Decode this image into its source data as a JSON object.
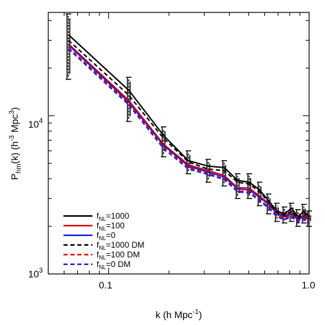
{
  "chart_data": {
    "type": "line",
    "title": "",
    "xlabel": {
      "main": "k (h Mpc",
      "sup": "-1",
      "tail": ")"
    },
    "ylabel": {
      "a": "P",
      "sub": "hm",
      "b": "(k) (h",
      "sup1": "-3",
      "c": " Mpc",
      "sup2": "3",
      "d": ")"
    },
    "xscale": "log",
    "yscale": "log",
    "xlim": [
      0.05,
      1.0
    ],
    "ylim": [
      1000,
      45000
    ],
    "xticks": [
      {
        "value": 0.1,
        "label": "0.1"
      },
      {
        "value": 1.0,
        "label": "1.0"
      }
    ],
    "yticks": [
      {
        "value": 1000,
        "base": "10",
        "exp": "3"
      },
      {
        "value": 10000,
        "base": "10",
        "exp": "4"
      }
    ],
    "grid": false,
    "legend_position": "bottom-left",
    "x": [
      0.063,
      0.126,
      0.188,
      0.25,
      0.314,
      0.377,
      0.44,
      0.503,
      0.566,
      0.628,
      0.691,
      0.754,
      0.817,
      0.88,
      0.942,
      1.0
    ],
    "series": [
      {
        "name_main": "f",
        "name_sub": "NL",
        "name_rest": "=1000",
        "color": "#000000",
        "dash": "solid",
        "values": [
          32500,
          14500,
          7500,
          5200,
          4800,
          4700,
          3900,
          3800,
          3400,
          2900,
          2500,
          2400,
          2600,
          2300,
          2500,
          2300
        ]
      },
      {
        "name_main": "f",
        "name_sub": "NL",
        "name_rest": "=100",
        "color": "#e00000",
        "dash": "solid",
        "values": [
          28500,
          12500,
          6600,
          4900,
          4500,
          4200,
          3500,
          3500,
          3100,
          2800,
          2450,
          2350,
          2450,
          2250,
          2350,
          2250
        ]
      },
      {
        "name_main": "f",
        "name_sub": "NL",
        "name_rest": "=0",
        "color": "#1c1cd8",
        "dash": "solid",
        "values": [
          28000,
          12200,
          6500,
          4800,
          4400,
          4100,
          3450,
          3400,
          3050,
          2750,
          2400,
          2300,
          2400,
          2200,
          2300,
          2200
        ]
      },
      {
        "name_main": "f",
        "name_sub": "NL",
        "name_rest": "=1000 DM",
        "color": "#000000",
        "dash": "dashed",
        "values": [
          30000,
          13500,
          7200,
          5100,
          4600,
          4500,
          3800,
          3700,
          3300,
          2850,
          2450,
          2350,
          2500,
          2250,
          2400,
          2250
        ]
      },
      {
        "name_main": "f",
        "name_sub": "NL",
        "name_rest": "=100 DM",
        "color": "#e00000",
        "dash": "dashed",
        "values": [
          27000,
          12000,
          6400,
          4700,
          4300,
          4000,
          3350,
          3300,
          2950,
          2650,
          2350,
          2250,
          2350,
          2150,
          2250,
          2150
        ]
      },
      {
        "name_main": "f",
        "name_sub": "NL",
        "name_rest": "=0 DM",
        "color": "#1c1cd8",
        "dash": "dashed",
        "values": [
          26500,
          11700,
          6200,
          4600,
          4250,
          3950,
          3300,
          3250,
          2900,
          2600,
          2300,
          2200,
          2300,
          2100,
          2200,
          2100
        ]
      }
    ],
    "errorbars": [
      {
        "x": 0.063,
        "lo": 17000,
        "hi": 44000
      },
      {
        "x": 0.126,
        "lo": 9200,
        "hi": 17500
      },
      {
        "x": 0.188,
        "lo": 5500,
        "hi": 8500
      },
      {
        "x": 0.25,
        "lo": 4300,
        "hi": 6000
      },
      {
        "x": 0.314,
        "lo": 3800,
        "hi": 5300
      },
      {
        "x": 0.377,
        "lo": 3600,
        "hi": 5200
      },
      {
        "x": 0.44,
        "lo": 3000,
        "hi": 4300
      },
      {
        "x": 0.503,
        "lo": 3000,
        "hi": 4300
      },
      {
        "x": 0.566,
        "lo": 2700,
        "hi": 3800
      },
      {
        "x": 0.628,
        "lo": 2400,
        "hi": 3200
      },
      {
        "x": 0.691,
        "lo": 2150,
        "hi": 2800
      },
      {
        "x": 0.754,
        "lo": 2100,
        "hi": 2650
      },
      {
        "x": 0.817,
        "lo": 2150,
        "hi": 2800
      },
      {
        "x": 0.88,
        "lo": 2000,
        "hi": 2550
      },
      {
        "x": 0.942,
        "lo": 2100,
        "hi": 2750
      },
      {
        "x": 1.0,
        "lo": 2000,
        "hi": 2500
      }
    ]
  }
}
